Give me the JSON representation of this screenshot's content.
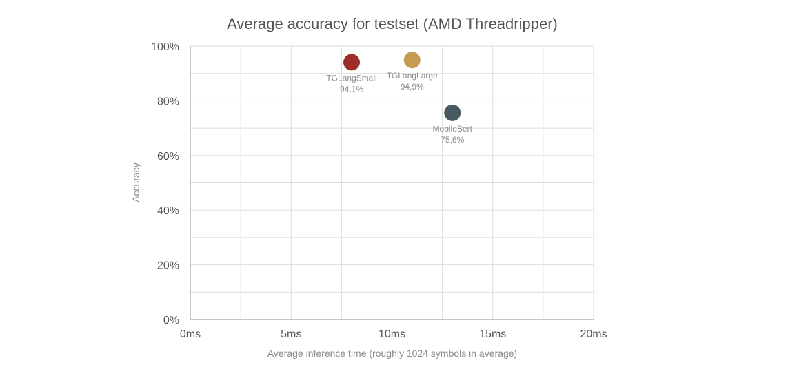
{
  "chart_data": {
    "type": "scatter",
    "title": "Average accuracy for testset (AMD Threadripper)",
    "xlabel": "Average inference time (roughly 1024 symbols in average)",
    "ylabel": "Accuracy",
    "xlim": [
      0,
      20
    ],
    "ylim": [
      0,
      100
    ],
    "x_ticks": [
      {
        "value": 0,
        "label": "0ms"
      },
      {
        "value": 5,
        "label": "5ms"
      },
      {
        "value": 10,
        "label": "10ms"
      },
      {
        "value": 15,
        "label": "15ms"
      },
      {
        "value": 20,
        "label": "20ms"
      }
    ],
    "y_ticks": [
      {
        "value": 0,
        "label": "0%"
      },
      {
        "value": 20,
        "label": "20%"
      },
      {
        "value": 40,
        "label": "40%"
      },
      {
        "value": 60,
        "label": "60%"
      },
      {
        "value": 80,
        "label": "80%"
      },
      {
        "value": 100,
        "label": "100%"
      }
    ],
    "grid": true,
    "legend": "none",
    "points": [
      {
        "name": "TGLangSmall",
        "x": 8,
        "y": 94.1,
        "value_label": "94,1%",
        "color": "#9b2f28"
      },
      {
        "name": "TGLangLarge",
        "x": 11,
        "y": 94.9,
        "value_label": "94,9%",
        "color": "#c79a52"
      },
      {
        "name": "MobileBert",
        "x": 13,
        "y": 75.6,
        "value_label": "75,6%",
        "color": "#465a60"
      }
    ]
  }
}
